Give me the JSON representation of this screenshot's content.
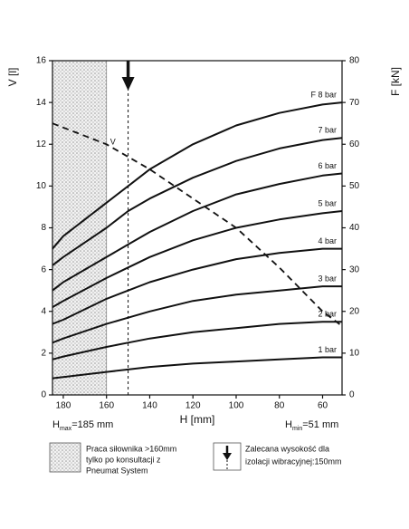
{
  "chart_data": {
    "type": "line",
    "y_label": "V [l]",
    "y2_label": "F [kN]",
    "x_label": "H [mm]",
    "x": [
      185,
      180,
      160,
      150,
      140,
      120,
      100,
      80,
      60,
      51
    ],
    "xlim": [
      185,
      51
    ],
    "xticks": [
      180,
      160,
      140,
      120,
      100,
      80,
      60
    ],
    "ylim": [
      0,
      16
    ],
    "yticks": [
      0,
      2,
      4,
      6,
      8,
      10,
      12,
      14,
      16
    ],
    "y2lim": [
      0,
      80
    ],
    "y2ticks": [
      0,
      10,
      20,
      30,
      40,
      50,
      60,
      70,
      80
    ],
    "grid": false,
    "series": [
      {
        "name": "V",
        "axis": "y",
        "color": "#111111",
        "dashed": true,
        "values": [
          13,
          12.8,
          12,
          11.4,
          10.8,
          9.4,
          8,
          6.1,
          4,
          3.3
        ]
      },
      {
        "name": "F 8 bar",
        "axis": "y2",
        "color": "#111111",
        "values": [
          35,
          38,
          46,
          50,
          54,
          60,
          64.5,
          67.5,
          69.5,
          70
        ]
      },
      {
        "name": "7 bar",
        "axis": "y2",
        "color": "#111111",
        "values": [
          31,
          33,
          40,
          44,
          47,
          52,
          56,
          59,
          61,
          61.5
        ]
      },
      {
        "name": "6 bar",
        "axis": "y2",
        "color": "#111111",
        "values": [
          25,
          27,
          33,
          36,
          39,
          44,
          48,
          50.5,
          52.5,
          53
        ]
      },
      {
        "name": "5 bar",
        "axis": "y2",
        "color": "#111111",
        "values": [
          21,
          22.5,
          28,
          30.5,
          33,
          37,
          40,
          42,
          43.5,
          44
        ]
      },
      {
        "name": "4 bar",
        "axis": "y2",
        "color": "#111111",
        "values": [
          17,
          18,
          23,
          25,
          27,
          30,
          32.5,
          34,
          35,
          35
        ]
      },
      {
        "name": "3 bar",
        "axis": "y2",
        "color": "#111111",
        "values": [
          12.5,
          13.5,
          17,
          18.5,
          20,
          22.5,
          24,
          25,
          26,
          26
        ]
      },
      {
        "name": "2 bar",
        "axis": "y2",
        "color": "#111111",
        "values": [
          8.5,
          9.2,
          11.5,
          12.5,
          13.5,
          15,
          16,
          17,
          17.5,
          17.5
        ]
      },
      {
        "name": "1 bar",
        "axis": "y2",
        "color": "#111111",
        "values": [
          4,
          4.3,
          5.5,
          6.1,
          6.7,
          7.5,
          8,
          8.5,
          9,
          9
        ]
      }
    ],
    "hatch_range": [
      185,
      160
    ],
    "recommended_height": 150,
    "h_max": {
      "symbol": "H",
      "sub": "max",
      "text": "=185 mm"
    },
    "h_min": {
      "symbol": "H",
      "sub": "min",
      "text": "=51 mm"
    },
    "legend_hatch": [
      "Praca siłownika >160mm",
      "tylko po konsultacji z",
      "Pneumat System"
    ],
    "legend_arrow": [
      "Zalecana wysokość dla",
      "izolacji wibracyjnej:150mm"
    ]
  }
}
